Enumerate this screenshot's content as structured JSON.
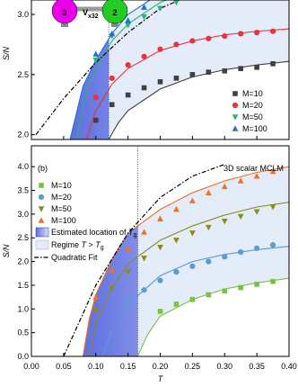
{
  "chart_data": [
    {
      "type": "line",
      "y_label": "S/N",
      "inset": {
        "left": "3",
        "var": "V",
        "sub": "x32",
        "right": "2"
      },
      "xlim": [
        0,
        0.4
      ],
      "xticks": [
        0,
        0.05,
        0.1,
        0.15,
        0.2,
        0.25,
        0.3,
        0.35,
        0.4
      ],
      "ylim": [
        1.96,
        3.12
      ],
      "yticks": [
        {
          "value": 2,
          "label": "2.0"
        },
        {
          "value": 2.5,
          "label": "2.5"
        },
        {
          "value": 3,
          "label": "3.0"
        }
      ],
      "tg_marker": 0.12,
      "series": [
        {
          "name": "M=10",
          "color": "#404040",
          "marker": "square",
          "x": [
            0.1,
            0.125,
            0.15,
            0.175,
            0.2,
            0.225,
            0.25,
            0.275,
            0.3,
            0.325,
            0.35,
            0.375
          ],
          "values": [
            2.12,
            2.25,
            2.33,
            2.39,
            2.44,
            2.47,
            2.5,
            2.52,
            2.53,
            2.55,
            2.56,
            2.59
          ]
        },
        {
          "name": "M=20",
          "color": "#e8333a",
          "marker": "circle",
          "x": [
            0.1,
            0.125,
            0.15,
            0.175,
            0.2,
            0.225,
            0.25,
            0.275,
            0.3,
            0.325,
            0.35,
            0.375
          ],
          "values": [
            2.31,
            2.47,
            2.58,
            2.65,
            2.71,
            2.75,
            2.78,
            2.8,
            2.82,
            2.84,
            2.85,
            2.86
          ]
        },
        {
          "name": "M=50",
          "color": "#2db37a",
          "marker": "tri-down",
          "x": [
            0.1,
            0.125,
            0.15,
            0.175,
            0.2,
            0.225
          ],
          "values": [
            2.62,
            2.82,
            2.91,
            2.98,
            3.05,
            3.1
          ]
        },
        {
          "name": "M=100",
          "color": "#1f6fd1",
          "marker": "tri-up",
          "x": [
            0.1,
            0.125,
            0.15,
            0.175
          ],
          "values": [
            2.67,
            2.84,
            2.95,
            3.06
          ]
        }
      ],
      "fits": [
        {
          "color": "#1f6fd1",
          "x": [
            0.06,
            0.08,
            0.1,
            0.125,
            0.15,
            0.19
          ],
          "values": [
            1.96,
            2.4,
            2.62,
            2.84,
            3.0,
            3.14
          ]
        },
        {
          "color": "#2db37a",
          "x": [
            0.07,
            0.085,
            0.1,
            0.125,
            0.15,
            0.2,
            0.22
          ],
          "values": [
            1.96,
            2.35,
            2.55,
            2.78,
            2.92,
            3.1,
            3.14
          ]
        },
        {
          "color": "#e8333a",
          "x": [
            0.085,
            0.1,
            0.125,
            0.15,
            0.2,
            0.25,
            0.3,
            0.35,
            0.4
          ],
          "values": [
            1.96,
            2.2,
            2.42,
            2.55,
            2.7,
            2.78,
            2.83,
            2.86,
            2.88
          ]
        },
        {
          "color": "#404040",
          "x": [
            0.12,
            0.135,
            0.15,
            0.2,
            0.25,
            0.3,
            0.35,
            0.4
          ],
          "values": [
            1.96,
            2.1,
            2.2,
            2.38,
            2.48,
            2.54,
            2.58,
            2.61
          ]
        }
      ],
      "quadratic": {
        "x": [
          0.007,
          0.05,
          0.1,
          0.15,
          0.2,
          0.23
        ],
        "values": [
          2.0,
          2.3,
          2.6,
          2.85,
          3.05,
          3.12
        ]
      }
    },
    {
      "type": "line",
      "y_label": "S/N",
      "x_label": "T",
      "panel_label": "(b)",
      "title": "3D scalar MCLM",
      "xlim": [
        0,
        0.4
      ],
      "xticks": [
        {
          "value": 0,
          "label": "0.00"
        },
        {
          "value": 0.05,
          "label": "0.05"
        },
        {
          "value": 0.1,
          "label": "0.10"
        },
        {
          "value": 0.15,
          "label": "0.15"
        },
        {
          "value": 0.2,
          "label": "0.20"
        },
        {
          "value": 0.25,
          "label": "0.25"
        },
        {
          "value": 0.3,
          "label": "0.30"
        },
        {
          "value": 0.35,
          "label": "0.35"
        },
        {
          "value": 0.4,
          "label": "0.40"
        }
      ],
      "ylim": [
        0,
        4.44
      ],
      "yticks": [
        {
          "value": 0,
          "label": "0.0"
        },
        {
          "value": 0.5,
          "label": "0.5"
        },
        {
          "value": 1,
          "label": "1.0"
        },
        {
          "value": 1.5,
          "label": "1.5"
        },
        {
          "value": 2,
          "label": "2.0"
        },
        {
          "value": 2.5,
          "label": "2.5"
        },
        {
          "value": 3,
          "label": "3.0"
        },
        {
          "value": 3.5,
          "label": "3.5"
        },
        {
          "value": 4,
          "label": "4.0"
        }
      ],
      "tg_marker": 0.165,
      "series": [
        {
          "name": "M=10",
          "color": "#7ac142",
          "marker": "square",
          "x": [
            0.2,
            0.225,
            0.25,
            0.275,
            0.3,
            0.325,
            0.35,
            0.375
          ],
          "values": [
            0.95,
            1.1,
            1.2,
            1.3,
            1.38,
            1.45,
            1.52,
            1.58
          ]
        },
        {
          "name": "M=20",
          "color": "#5a9bd4",
          "marker": "circle",
          "x": [
            0.15,
            0.175,
            0.2,
            0.225,
            0.25,
            0.275,
            0.3,
            0.325,
            0.35,
            0.375
          ],
          "values": [
            1.15,
            1.4,
            1.6,
            1.78,
            1.9,
            2.0,
            2.1,
            2.2,
            2.28,
            2.35
          ]
        },
        {
          "name": "M=50",
          "color": "#8b8b1a",
          "marker": "tri-down",
          "x": [
            0.1,
            0.125,
            0.15,
            0.175,
            0.2,
            0.225,
            0.25,
            0.275,
            0.3,
            0.325,
            0.35,
            0.375
          ],
          "values": [
            0.97,
            1.44,
            1.78,
            2.07,
            2.3,
            2.45,
            2.6,
            2.72,
            2.85,
            2.95,
            3.05,
            3.15
          ]
        },
        {
          "name": "M=100",
          "color": "#f07020",
          "marker": "tri-up",
          "x": [
            0.1,
            0.125,
            0.15,
            0.175,
            0.2,
            0.225,
            0.25,
            0.275,
            0.3,
            0.325,
            0.35,
            0.375
          ],
          "values": [
            1.25,
            1.82,
            2.26,
            2.62,
            2.9,
            3.1,
            3.28,
            3.45,
            3.58,
            3.7,
            3.8,
            3.9
          ]
        }
      ],
      "regions": [
        {
          "parts": [
            {
              "text": "Estimated location of "
            },
            {
              "text": "T",
              "italic": true
            },
            {
              "text": "g",
              "sub": true
            }
          ]
        },
        {
          "parts": [
            {
              "text": "Regime "
            },
            {
              "text": "T",
              "italic": true
            },
            {
              "text": " > "
            },
            {
              "text": "T",
              "italic": true
            },
            {
              "text": "g",
              "sub": true
            }
          ]
        }
      ],
      "fits": [
        {
          "color": "#f07020",
          "x": [
            0.08,
            0.09,
            0.1,
            0.125,
            0.15,
            0.2,
            0.25,
            0.3,
            0.35,
            0.4
          ],
          "values": [
            0,
            0.8,
            1.3,
            2.05,
            2.6,
            3.1,
            3.45,
            3.7,
            3.88,
            4.0
          ]
        },
        {
          "color": "#8b8b1a",
          "x": [
            0.09,
            0.1,
            0.125,
            0.15,
            0.2,
            0.25,
            0.3,
            0.35,
            0.4
          ],
          "values": [
            0,
            0.7,
            1.45,
            1.95,
            2.45,
            2.75,
            2.98,
            3.15,
            3.25
          ]
        },
        {
          "color": "#5a9bd4",
          "x": [
            0.11,
            0.125,
            0.15,
            0.2,
            0.25,
            0.3,
            0.35,
            0.4
          ],
          "values": [
            0,
            0.55,
            1.1,
            1.7,
            2.0,
            2.15,
            2.25,
            2.32
          ]
        },
        {
          "color": "#7ac142",
          "x": [
            0.165,
            0.18,
            0.2,
            0.25,
            0.3,
            0.35,
            0.4
          ],
          "values": [
            0,
            0.45,
            0.85,
            1.2,
            1.42,
            1.55,
            1.65
          ]
        }
      ],
      "quadratic": {
        "name": "Quadratic Fit",
        "x": [
          0.05,
          0.1,
          0.15,
          0.2,
          0.25,
          0.3
        ],
        "values": [
          0,
          1.5,
          2.6,
          3.35,
          3.8,
          4.05
        ]
      }
    }
  ]
}
